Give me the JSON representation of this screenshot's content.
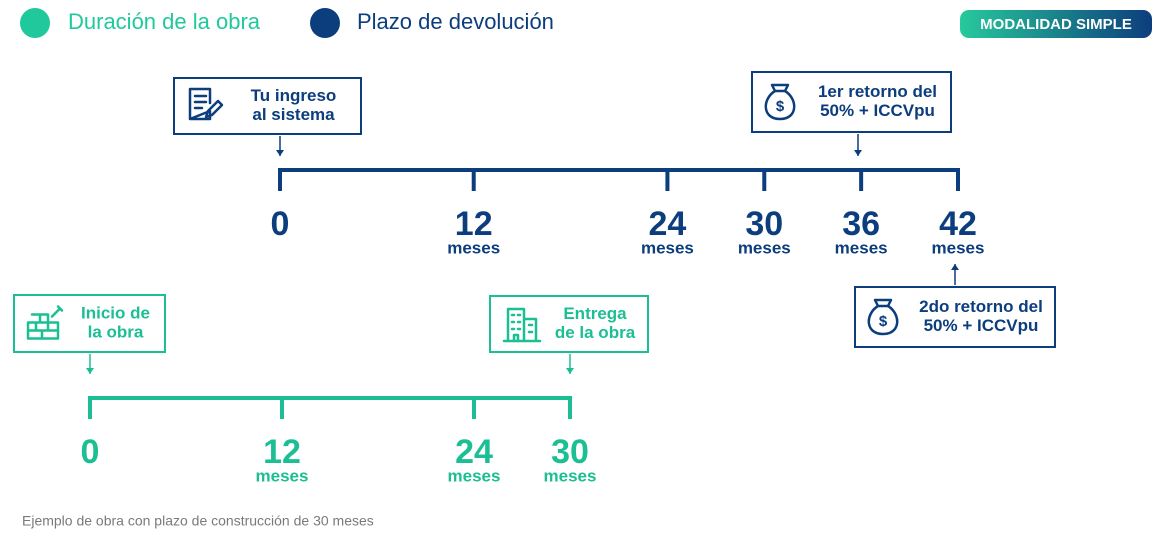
{
  "legend": [
    {
      "label": "Duración de la obra",
      "color": "#1fc99b"
    },
    {
      "label": "Plazo de devolución",
      "color": "#0c3d7d"
    }
  ],
  "badge": "MODALIDAD SIMPLE",
  "timelines": [
    {
      "color": "#0c3d7d",
      "ticks": [
        0,
        12,
        24,
        30,
        36,
        42
      ],
      "unit": "meses",
      "callouts": [
        {
          "lines": [
            "Tu ingreso",
            "al sistema"
          ]
        },
        {
          "lines": [
            "1er retorno del",
            "50% + ICCVpu"
          ]
        },
        {
          "lines": [
            "2do retorno del",
            "50% + ICCVpu"
          ]
        }
      ]
    },
    {
      "color": "#1bbf93",
      "ticks": [
        0,
        12,
        24,
        30
      ],
      "unit": "meses",
      "callouts": [
        {
          "lines": [
            "Inicio de",
            "la obra"
          ]
        },
        {
          "lines": [
            "Entrega",
            "de la obra"
          ]
        }
      ]
    }
  ],
  "footnote": "Ejemplo de obra con plazo de construcción de 30 meses"
}
